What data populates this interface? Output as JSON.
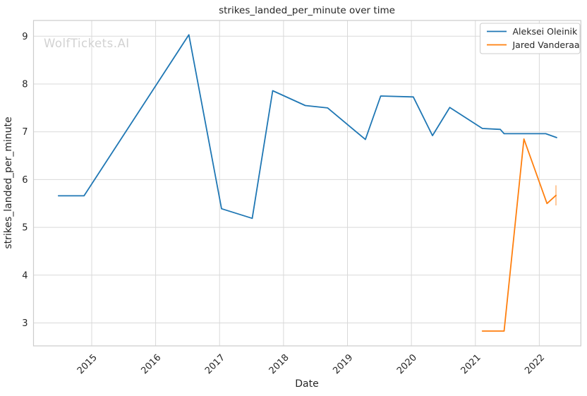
{
  "watermark": "WolfTickets.AI",
  "colors": {
    "text": "#262626",
    "grid": "#d9d9d9",
    "spine": "#cccccc",
    "background": "#ffffff",
    "watermark": "#d2d2d2",
    "legend_border": "#cccccc"
  },
  "chart_data": {
    "type": "line",
    "title": "strikes_landed_per_minute over time",
    "xlabel": "Date",
    "ylabel": "strikes_landed_per_minute",
    "xlim": [
      2014.09,
      2022.65
    ],
    "ylim": [
      2.52,
      9.33
    ],
    "xticks": [
      "2015",
      "2016",
      "2017",
      "2018",
      "2019",
      "2020",
      "2021",
      "2022"
    ],
    "xtick_values": [
      2015,
      2016,
      2017,
      2018,
      2019,
      2020,
      2021,
      2022
    ],
    "yticks": [
      "3",
      "4",
      "5",
      "6",
      "7",
      "8",
      "9"
    ],
    "ytick_values": [
      3,
      4,
      5,
      6,
      7,
      8,
      9
    ],
    "grid": true,
    "legend_position": "upper right",
    "series": [
      {
        "name": "Aleksei Oleinik",
        "color": "#1f77b4",
        "points": [
          [
            2014.48,
            5.66
          ],
          [
            2014.88,
            5.66
          ],
          [
            2016.52,
            9.03
          ],
          [
            2017.03,
            5.39
          ],
          [
            2017.51,
            5.19
          ],
          [
            2017.83,
            7.86
          ],
          [
            2018.34,
            7.55
          ],
          [
            2018.69,
            7.5
          ],
          [
            2019.28,
            6.84
          ],
          [
            2019.52,
            7.75
          ],
          [
            2020.03,
            7.73
          ],
          [
            2020.33,
            6.92
          ],
          [
            2020.6,
            7.51
          ],
          [
            2021.11,
            7.07
          ],
          [
            2021.39,
            7.05
          ],
          [
            2021.45,
            6.96
          ],
          [
            2022.1,
            6.96
          ],
          [
            2022.27,
            6.88
          ]
        ]
      },
      {
        "name": "Jared Vanderaa",
        "color": "#ff7f0e",
        "points": [
          [
            2021.11,
            2.83
          ],
          [
            2021.45,
            2.83
          ],
          [
            2021.76,
            6.85
          ],
          [
            2022.12,
            5.5
          ],
          [
            2022.26,
            5.67
          ]
        ],
        "endcap": {
          "x": 2022.26,
          "y_low": 5.46,
          "y_high": 5.88,
          "color": "rgba(255,127,14,0.45)"
        }
      }
    ]
  }
}
